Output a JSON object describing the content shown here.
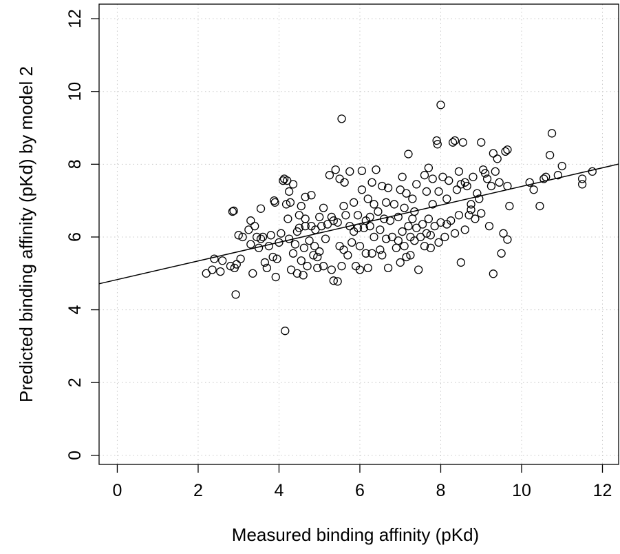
{
  "chart_data": {
    "type": "scatter",
    "title": "",
    "xlabel": "Measured binding affinity (pKd)",
    "ylabel": "Predicted binding affinity (pKd) by model 2",
    "xlim": [
      -0.45,
      12.4
    ],
    "ylim": [
      -0.25,
      12.4
    ],
    "x_ticks": [
      0,
      2,
      4,
      6,
      8,
      10,
      12
    ],
    "y_ticks": [
      0,
      2,
      4,
      6,
      8,
      10,
      12
    ],
    "grid": true,
    "regression_line": {
      "intercept": 4.83,
      "slope": 0.256
    },
    "points": [
      [
        2.2,
        5.0
      ],
      [
        2.35,
        5.1
      ],
      [
        2.4,
        5.4
      ],
      [
        2.55,
        5.05
      ],
      [
        2.6,
        5.35
      ],
      [
        2.8,
        5.2
      ],
      [
        2.85,
        6.7
      ],
      [
        2.88,
        6.72
      ],
      [
        2.9,
        5.15
      ],
      [
        2.93,
        4.42
      ],
      [
        2.95,
        5.25
      ],
      [
        3.0,
        6.05
      ],
      [
        3.05,
        5.4
      ],
      [
        3.1,
        6.0
      ],
      [
        3.25,
        6.2
      ],
      [
        3.3,
        5.8
      ],
      [
        3.3,
        6.45
      ],
      [
        3.35,
        5.0
      ],
      [
        3.4,
        6.3
      ],
      [
        3.45,
        6.0
      ],
      [
        3.5,
        5.7
      ],
      [
        3.55,
        6.78
      ],
      [
        3.6,
        6.0
      ],
      [
        3.65,
        5.3
      ],
      [
        3.7,
        5.15
      ],
      [
        3.75,
        5.75
      ],
      [
        3.8,
        6.05
      ],
      [
        3.85,
        5.45
      ],
      [
        3.88,
        7.0
      ],
      [
        3.9,
        6.95
      ],
      [
        3.92,
        4.9
      ],
      [
        3.95,
        5.4
      ],
      [
        4.0,
        5.85
      ],
      [
        4.05,
        6.1
      ],
      [
        4.1,
        7.55
      ],
      [
        4.13,
        7.6
      ],
      [
        4.15,
        3.42
      ],
      [
        4.18,
        6.9
      ],
      [
        4.2,
        7.55
      ],
      [
        4.22,
        6.5
      ],
      [
        4.25,
        7.25
      ],
      [
        4.28,
        6.95
      ],
      [
        4.3,
        5.1
      ],
      [
        4.35,
        7.45
      ],
      [
        4.35,
        5.55
      ],
      [
        4.4,
        5.8
      ],
      [
        4.45,
        5.0
      ],
      [
        4.5,
        6.25
      ],
      [
        4.5,
        6.6
      ],
      [
        4.55,
        5.35
      ],
      [
        4.55,
        6.85
      ],
      [
        4.6,
        4.95
      ],
      [
        4.62,
        5.7
      ],
      [
        4.65,
        7.1
      ],
      [
        4.65,
        6.3
      ],
      [
        4.7,
        5.2
      ],
      [
        4.75,
        5.9
      ],
      [
        4.8,
        6.3
      ],
      [
        4.8,
        7.15
      ],
      [
        4.85,
        5.5
      ],
      [
        4.88,
        5.75
      ],
      [
        4.9,
        6.2
      ],
      [
        4.95,
        5.15
      ],
      [
        5.0,
        5.6
      ],
      [
        5.0,
        6.55
      ],
      [
        5.05,
        6.3
      ],
      [
        5.1,
        5.2
      ],
      [
        5.1,
        6.8
      ],
      [
        5.15,
        5.95
      ],
      [
        5.2,
        6.35
      ],
      [
        5.25,
        7.7
      ],
      [
        5.3,
        5.1
      ],
      [
        5.35,
        4.8
      ],
      [
        5.35,
        6.45
      ],
      [
        5.4,
        7.85
      ],
      [
        5.45,
        4.78
      ],
      [
        5.45,
        6.4
      ],
      [
        5.5,
        7.6
      ],
      [
        5.55,
        9.25
      ],
      [
        5.55,
        5.2
      ],
      [
        5.6,
        5.65
      ],
      [
        5.6,
        6.85
      ],
      [
        5.62,
        7.5
      ],
      [
        5.7,
        5.5
      ],
      [
        5.75,
        6.3
      ],
      [
        5.75,
        7.8
      ],
      [
        5.8,
        5.85
      ],
      [
        5.85,
        6.15
      ],
      [
        5.85,
        6.95
      ],
      [
        5.9,
        5.2
      ],
      [
        5.95,
        6.6
      ],
      [
        6.0,
        5.1
      ],
      [
        6.0,
        5.75
      ],
      [
        6.05,
        7.3
      ],
      [
        6.05,
        7.82
      ],
      [
        6.1,
        6.25
      ],
      [
        6.15,
        5.55
      ],
      [
        6.15,
        6.45
      ],
      [
        6.2,
        7.05
      ],
      [
        6.2,
        5.15
      ],
      [
        6.25,
        6.3
      ],
      [
        6.3,
        5.55
      ],
      [
        6.3,
        7.5
      ],
      [
        6.35,
        6.0
      ],
      [
        6.4,
        7.85
      ],
      [
        6.45,
        6.7
      ],
      [
        6.5,
        5.65
      ],
      [
        6.5,
        6.2
      ],
      [
        6.55,
        7.4
      ],
      [
        6.6,
        6.5
      ],
      [
        6.65,
        5.95
      ],
      [
        6.65,
        6.95
      ],
      [
        6.7,
        5.15
      ],
      [
        6.7,
        7.35
      ],
      [
        6.75,
        6.45
      ],
      [
        6.8,
        6.0
      ],
      [
        6.85,
        6.9
      ],
      [
        6.9,
        5.7
      ],
      [
        6.95,
        6.55
      ],
      [
        7.0,
        7.3
      ],
      [
        7.0,
        5.3
      ],
      [
        7.05,
        6.15
      ],
      [
        7.05,
        7.65
      ],
      [
        7.1,
        5.75
      ],
      [
        7.1,
        6.8
      ],
      [
        7.15,
        7.2
      ],
      [
        7.2,
        8.28
      ],
      [
        7.2,
        6.3
      ],
      [
        7.25,
        6.0
      ],
      [
        7.25,
        5.5
      ],
      [
        7.3,
        7.05
      ],
      [
        7.3,
        6.5
      ],
      [
        7.35,
        5.9
      ],
      [
        7.4,
        6.25
      ],
      [
        7.4,
        7.45
      ],
      [
        7.45,
        5.1
      ],
      [
        7.5,
        6.0
      ],
      [
        7.55,
        6.35
      ],
      [
        7.6,
        7.7
      ],
      [
        7.6,
        5.75
      ],
      [
        7.65,
        6.1
      ],
      [
        7.7,
        7.9
      ],
      [
        7.7,
        6.5
      ],
      [
        7.75,
        5.7
      ],
      [
        7.8,
        6.9
      ],
      [
        7.8,
        7.6
      ],
      [
        7.85,
        6.3
      ],
      [
        7.9,
        8.65
      ],
      [
        7.92,
        8.55
      ],
      [
        7.95,
        5.85
      ],
      [
        7.95,
        7.25
      ],
      [
        8.0,
        9.63
      ],
      [
        8.0,
        6.4
      ],
      [
        8.05,
        7.65
      ],
      [
        8.1,
        6.0
      ],
      [
        8.15,
        7.05
      ],
      [
        8.2,
        7.55
      ],
      [
        8.25,
        6.45
      ],
      [
        8.3,
        8.6
      ],
      [
        8.35,
        8.65
      ],
      [
        8.35,
        6.1
      ],
      [
        8.4,
        7.3
      ],
      [
        8.45,
        6.6
      ],
      [
        8.5,
        7.45
      ],
      [
        8.5,
        5.3
      ],
      [
        8.55,
        8.6
      ],
      [
        8.6,
        6.2
      ],
      [
        8.6,
        7.5
      ],
      [
        8.65,
        7.4
      ],
      [
        8.7,
        6.6
      ],
      [
        8.75,
        6.75
      ],
      [
        8.8,
        7.65
      ],
      [
        8.85,
        6.5
      ],
      [
        8.9,
        7.2
      ],
      [
        8.95,
        7.05
      ],
      [
        9.0,
        8.6
      ],
      [
        9.0,
        6.65
      ],
      [
        9.05,
        7.85
      ],
      [
        9.1,
        7.75
      ],
      [
        9.15,
        7.6
      ],
      [
        9.2,
        6.3
      ],
      [
        9.25,
        7.4
      ],
      [
        9.3,
        8.3
      ],
      [
        9.3,
        4.99
      ],
      [
        9.35,
        7.8
      ],
      [
        9.4,
        8.15
      ],
      [
        9.45,
        7.5
      ],
      [
        9.5,
        5.55
      ],
      [
        9.55,
        6.1
      ],
      [
        9.6,
        8.35
      ],
      [
        9.65,
        8.4
      ],
      [
        9.65,
        7.4
      ],
      [
        9.7,
        6.85
      ],
      [
        9.65,
        5.93
      ],
      [
        10.2,
        7.5
      ],
      [
        10.3,
        7.3
      ],
      [
        10.45,
        6.85
      ],
      [
        10.55,
        7.6
      ],
      [
        10.6,
        7.65
      ],
      [
        10.7,
        8.25
      ],
      [
        10.75,
        8.85
      ],
      [
        10.9,
        7.7
      ],
      [
        11.0,
        7.95
      ],
      [
        11.5,
        7.6
      ],
      [
        11.5,
        7.45
      ],
      [
        11.75,
        7.8
      ],
      [
        5.95,
        6.25
      ],
      [
        6.25,
        6.55
      ],
      [
        7.75,
        6.05
      ],
      [
        8.15,
        6.35
      ],
      [
        5.5,
        5.75
      ],
      [
        4.25,
        5.95
      ],
      [
        4.65,
        6.5
      ],
      [
        6.95,
        5.9
      ],
      [
        7.35,
        6.7
      ],
      [
        8.45,
        7.8
      ],
      [
        5.3,
        6.55
      ],
      [
        4.95,
        5.45
      ],
      [
        6.35,
        6.9
      ],
      [
        7.15,
        5.45
      ],
      [
        8.75,
        6.9
      ],
      [
        3.55,
        5.95
      ],
      [
        4.45,
        6.15
      ],
      [
        5.65,
        6.6
      ],
      [
        6.55,
        5.5
      ],
      [
        7.65,
        7.25
      ]
    ]
  }
}
